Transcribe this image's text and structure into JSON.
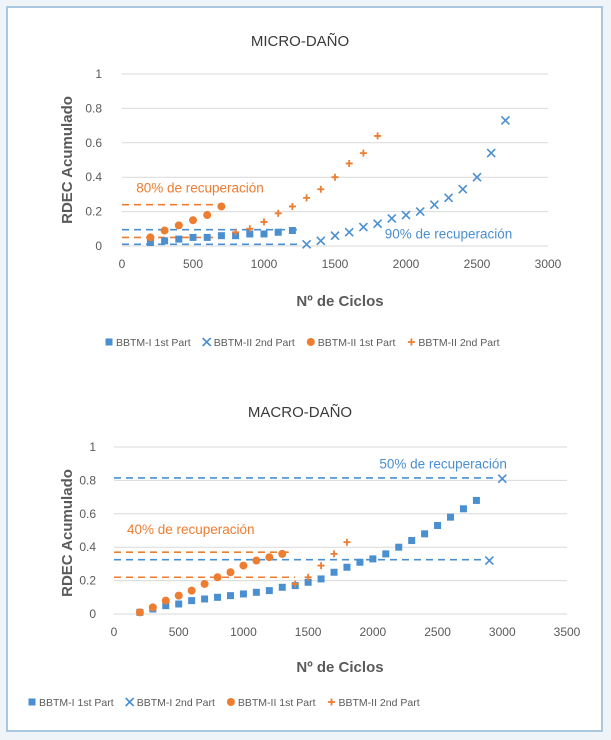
{
  "chart_data": [
    {
      "type": "scatter",
      "title": "MICRO-DAÑO",
      "xlabel": "Nº de Ciclos",
      "ylabel": "RDEC Acumulado",
      "xlim": [
        0,
        3000
      ],
      "ylim": [
        0,
        1
      ],
      "xticks": [
        "0",
        "500",
        "1000",
        "1500",
        "2000",
        "2500",
        "3000"
      ],
      "yticks": [
        "0",
        "0.2",
        "0.4",
        "0.6",
        "0.8",
        "1"
      ],
      "legend_position": "bottom",
      "series": [
        {
          "name": "BBTM-I 1st Part",
          "marker": "square",
          "color": "#4a8fd0",
          "x": [
            200,
            300,
            400,
            500,
            600,
            700,
            800,
            900,
            1000,
            1100,
            1200
          ],
          "y": [
            0.02,
            0.03,
            0.04,
            0.05,
            0.05,
            0.06,
            0.06,
            0.07,
            0.07,
            0.08,
            0.09
          ]
        },
        {
          "name": "BBTM-II 2nd Part",
          "marker": "x",
          "color": "#4a8fd0",
          "x": [
            1300,
            1400,
            1500,
            1600,
            1700,
            1800,
            1900,
            2000,
            2100,
            2200,
            2300,
            2400,
            2500,
            2600,
            2700
          ],
          "y": [
            0.01,
            0.03,
            0.06,
            0.08,
            0.11,
            0.13,
            0.16,
            0.18,
            0.2,
            0.24,
            0.28,
            0.33,
            0.4,
            0.54,
            0.73
          ]
        },
        {
          "name": "BBTM-II 1st Part",
          "marker": "circle",
          "color": "#ed7d31",
          "x": [
            200,
            300,
            400,
            500,
            600,
            700
          ],
          "y": [
            0.05,
            0.09,
            0.12,
            0.15,
            0.18,
            0.23
          ]
        },
        {
          "name": "BBTM-II 2nd Part",
          "marker": "plus",
          "color": "#ed7d31",
          "x": [
            800,
            900,
            1000,
            1100,
            1200,
            1300,
            1400,
            1500,
            1600,
            1700,
            1800
          ],
          "y": [
            0.08,
            0.1,
            0.14,
            0.19,
            0.23,
            0.28,
            0.33,
            0.4,
            0.48,
            0.54,
            0.64
          ]
        }
      ],
      "reference_lines": [
        {
          "y": 0.24,
          "x_end": 700,
          "color": "#ed7d31"
        },
        {
          "y": 0.05,
          "x_end": 700,
          "color": "#ed7d31"
        },
        {
          "y": 0.095,
          "x_end": 1250,
          "color": "#4a8fd0"
        },
        {
          "y": 0.01,
          "x_end": 1250,
          "color": "#4a8fd0"
        }
      ],
      "annotations": [
        {
          "text": "80% de recuperación",
          "x": 100,
          "y": 0.31,
          "color": "#ed7d31"
        },
        {
          "text": "90% de recuperación",
          "x": 1850,
          "y": 0.045,
          "color": "#4a8fd0"
        }
      ]
    },
    {
      "type": "scatter",
      "title": "MACRO-DAÑO",
      "xlabel": "Nº de Ciclos",
      "ylabel": "RDEC Acumulado",
      "xlim": [
        0,
        3500
      ],
      "ylim": [
        0,
        1
      ],
      "xticks": [
        "0",
        "500",
        "1000",
        "1500",
        "2000",
        "2500",
        "3000",
        "3500"
      ],
      "yticks": [
        "0",
        "0.2",
        "0.4",
        "0.6",
        "0.8",
        "1"
      ],
      "legend_position": "bottom",
      "series": [
        {
          "name": "BBTM-I 1st Part",
          "marker": "square",
          "color": "#4a8fd0",
          "x": [
            200,
            300,
            400,
            500,
            600,
            700,
            800,
            900,
            1000,
            1100,
            1200,
            1300,
            1400,
            1500,
            1600,
            1700,
            1800,
            1900,
            2000,
            2100,
            2200,
            2300,
            2400,
            2500,
            2600,
            2700,
            2800
          ],
          "y": [
            0.01,
            0.03,
            0.05,
            0.06,
            0.08,
            0.09,
            0.1,
            0.11,
            0.12,
            0.13,
            0.14,
            0.16,
            0.17,
            0.19,
            0.21,
            0.25,
            0.28,
            0.31,
            0.33,
            0.36,
            0.4,
            0.44,
            0.48,
            0.53,
            0.58,
            0.63,
            0.68
          ]
        },
        {
          "name": "BBTM-I 2nd Part",
          "marker": "x",
          "color": "#4a8fd0",
          "x": [
            2900,
            3000
          ],
          "y": [
            0.32,
            0.81
          ]
        },
        {
          "name": "BBTM-II 1st Part",
          "marker": "circle",
          "color": "#ed7d31",
          "x": [
            200,
            300,
            400,
            500,
            600,
            700,
            800,
            900,
            1000,
            1100,
            1200,
            1300
          ],
          "y": [
            0.01,
            0.04,
            0.08,
            0.11,
            0.14,
            0.18,
            0.22,
            0.25,
            0.29,
            0.32,
            0.34,
            0.36
          ]
        },
        {
          "name": "BBTM-II 2nd Part",
          "marker": "plus",
          "color": "#ed7d31",
          "x": [
            1400,
            1500,
            1600,
            1700,
            1800
          ],
          "y": [
            0.18,
            0.22,
            0.29,
            0.36,
            0.43
          ]
        }
      ],
      "reference_lines": [
        {
          "y": 0.815,
          "x_end": 2950,
          "color": "#4a8fd0"
        },
        {
          "y": 0.325,
          "x_end": 2850,
          "color": "#4a8fd0"
        },
        {
          "y": 0.37,
          "x_end": 1350,
          "color": "#ed7d31"
        },
        {
          "y": 0.22,
          "x_end": 1400,
          "color": "#ed7d31"
        }
      ],
      "annotations": [
        {
          "text": "50% de recuperación",
          "x": 2050,
          "y": 0.87,
          "color": "#4a8fd0"
        },
        {
          "text": "40% de recuperación",
          "x": 100,
          "y": 0.48,
          "color": "#ed7d31"
        }
      ]
    }
  ]
}
